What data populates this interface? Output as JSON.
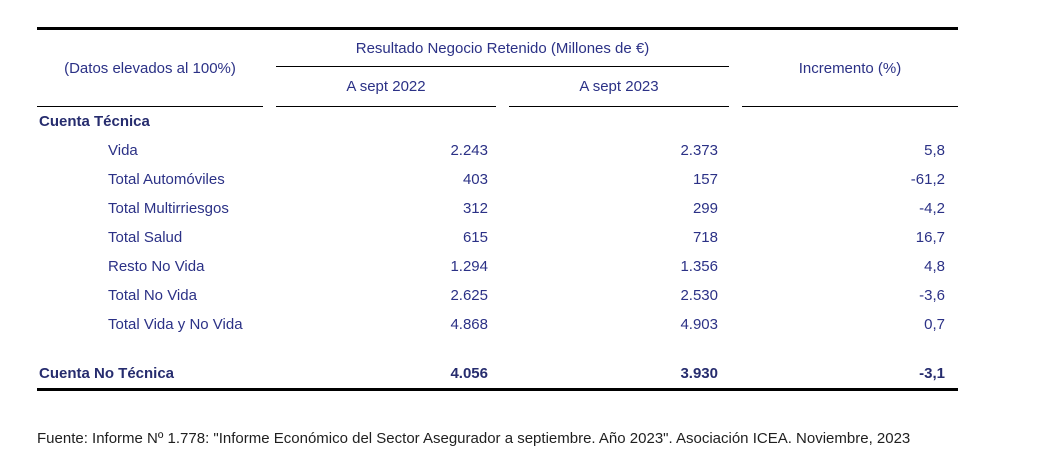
{
  "table": {
    "corner_label": "(Datos elevados al 100%)",
    "group_header": "Resultado Negocio Retenido (Millones de €)",
    "col_sept_2022": "A sept 2022",
    "col_sept_2023": "A sept 2023",
    "col_increment": "Incremento (%)",
    "rows": [
      {
        "label": "Cuenta Técnica",
        "style": "section",
        "v2022": "",
        "v2023": "",
        "inc": ""
      },
      {
        "label": "Vida",
        "style": "item",
        "v2022": "2.243",
        "v2023": "2.373",
        "inc": "5,8"
      },
      {
        "label": "Total Automóviles",
        "style": "item",
        "v2022": "403",
        "v2023": "157",
        "inc": "-61,2"
      },
      {
        "label": "Total Multirriesgos",
        "style": "item",
        "v2022": "312",
        "v2023": "299",
        "inc": "-4,2"
      },
      {
        "label": "Total Salud",
        "style": "item",
        "v2022": "615",
        "v2023": "718",
        "inc": "16,7"
      },
      {
        "label": "Resto No Vida",
        "style": "item",
        "v2022": "1.294",
        "v2023": "1.356",
        "inc": "4,8"
      },
      {
        "label": "Total No Vida",
        "style": "item",
        "v2022": "2.625",
        "v2023": "2.530",
        "inc": "-3,6"
      },
      {
        "label": "Total Vida y No Vida",
        "style": "item",
        "v2022": "4.868",
        "v2023": "4.903",
        "inc": "0,7"
      },
      {
        "label": "Cuenta No Técnica",
        "style": "total",
        "v2022": "4.056",
        "v2023": "3.930",
        "inc": "-3,1"
      }
    ]
  },
  "footer": {
    "source": "Fuente: Informe Nº 1.778: \"Informe Económico del Sector Asegurador a septiembre. Año 2023\". Asociación ICEA. Noviembre, 2023"
  },
  "colors": {
    "table_text": "#2B3186",
    "bold_text": "#262C6E",
    "rule": "#000000",
    "footer_text": "#1F1F1F",
    "background": "#FFFFFF"
  }
}
